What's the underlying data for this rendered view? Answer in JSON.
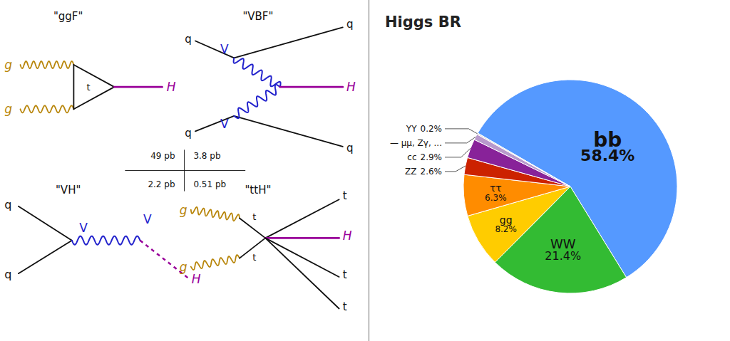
{
  "chart_data": {
    "type": "pie",
    "title": "Higgs BR",
    "categories": [
      "bb",
      "WW",
      "gg",
      "ττ",
      "ZZ",
      "cc",
      "— μμ, Zγ, ...",
      "YY"
    ],
    "values": [
      58.4,
      21.4,
      8.2,
      6.3,
      2.6,
      2.9,
      0.9,
      0.2
    ],
    "value_labels": [
      "58.4%",
      "21.4%",
      "8.2%",
      "6.3%",
      "2.6%",
      "2.9%",
      null,
      "0.2%"
    ],
    "colors": [
      "#5599ff",
      "#33bb33",
      "#ffcc00",
      "#ff8c00",
      "#cc2200",
      "#882299",
      "#b899cc",
      "#dddddd"
    ],
    "data_labels": true,
    "annotations": [
      "\"ggF\"",
      "g",
      "g",
      "t",
      "H",
      "\"VBF\"",
      "q",
      "q",
      "q",
      "q",
      "V",
      "V",
      "H",
      "49 pb",
      "3.8 pb",
      "2.2 pb",
      "0.51 pb",
      "\"VH\"",
      "q",
      "q",
      "V",
      "V",
      "H",
      "\"ttH\"",
      "g",
      "g",
      "t",
      "t",
      "t",
      "H",
      "t",
      "t"
    ]
  }
}
